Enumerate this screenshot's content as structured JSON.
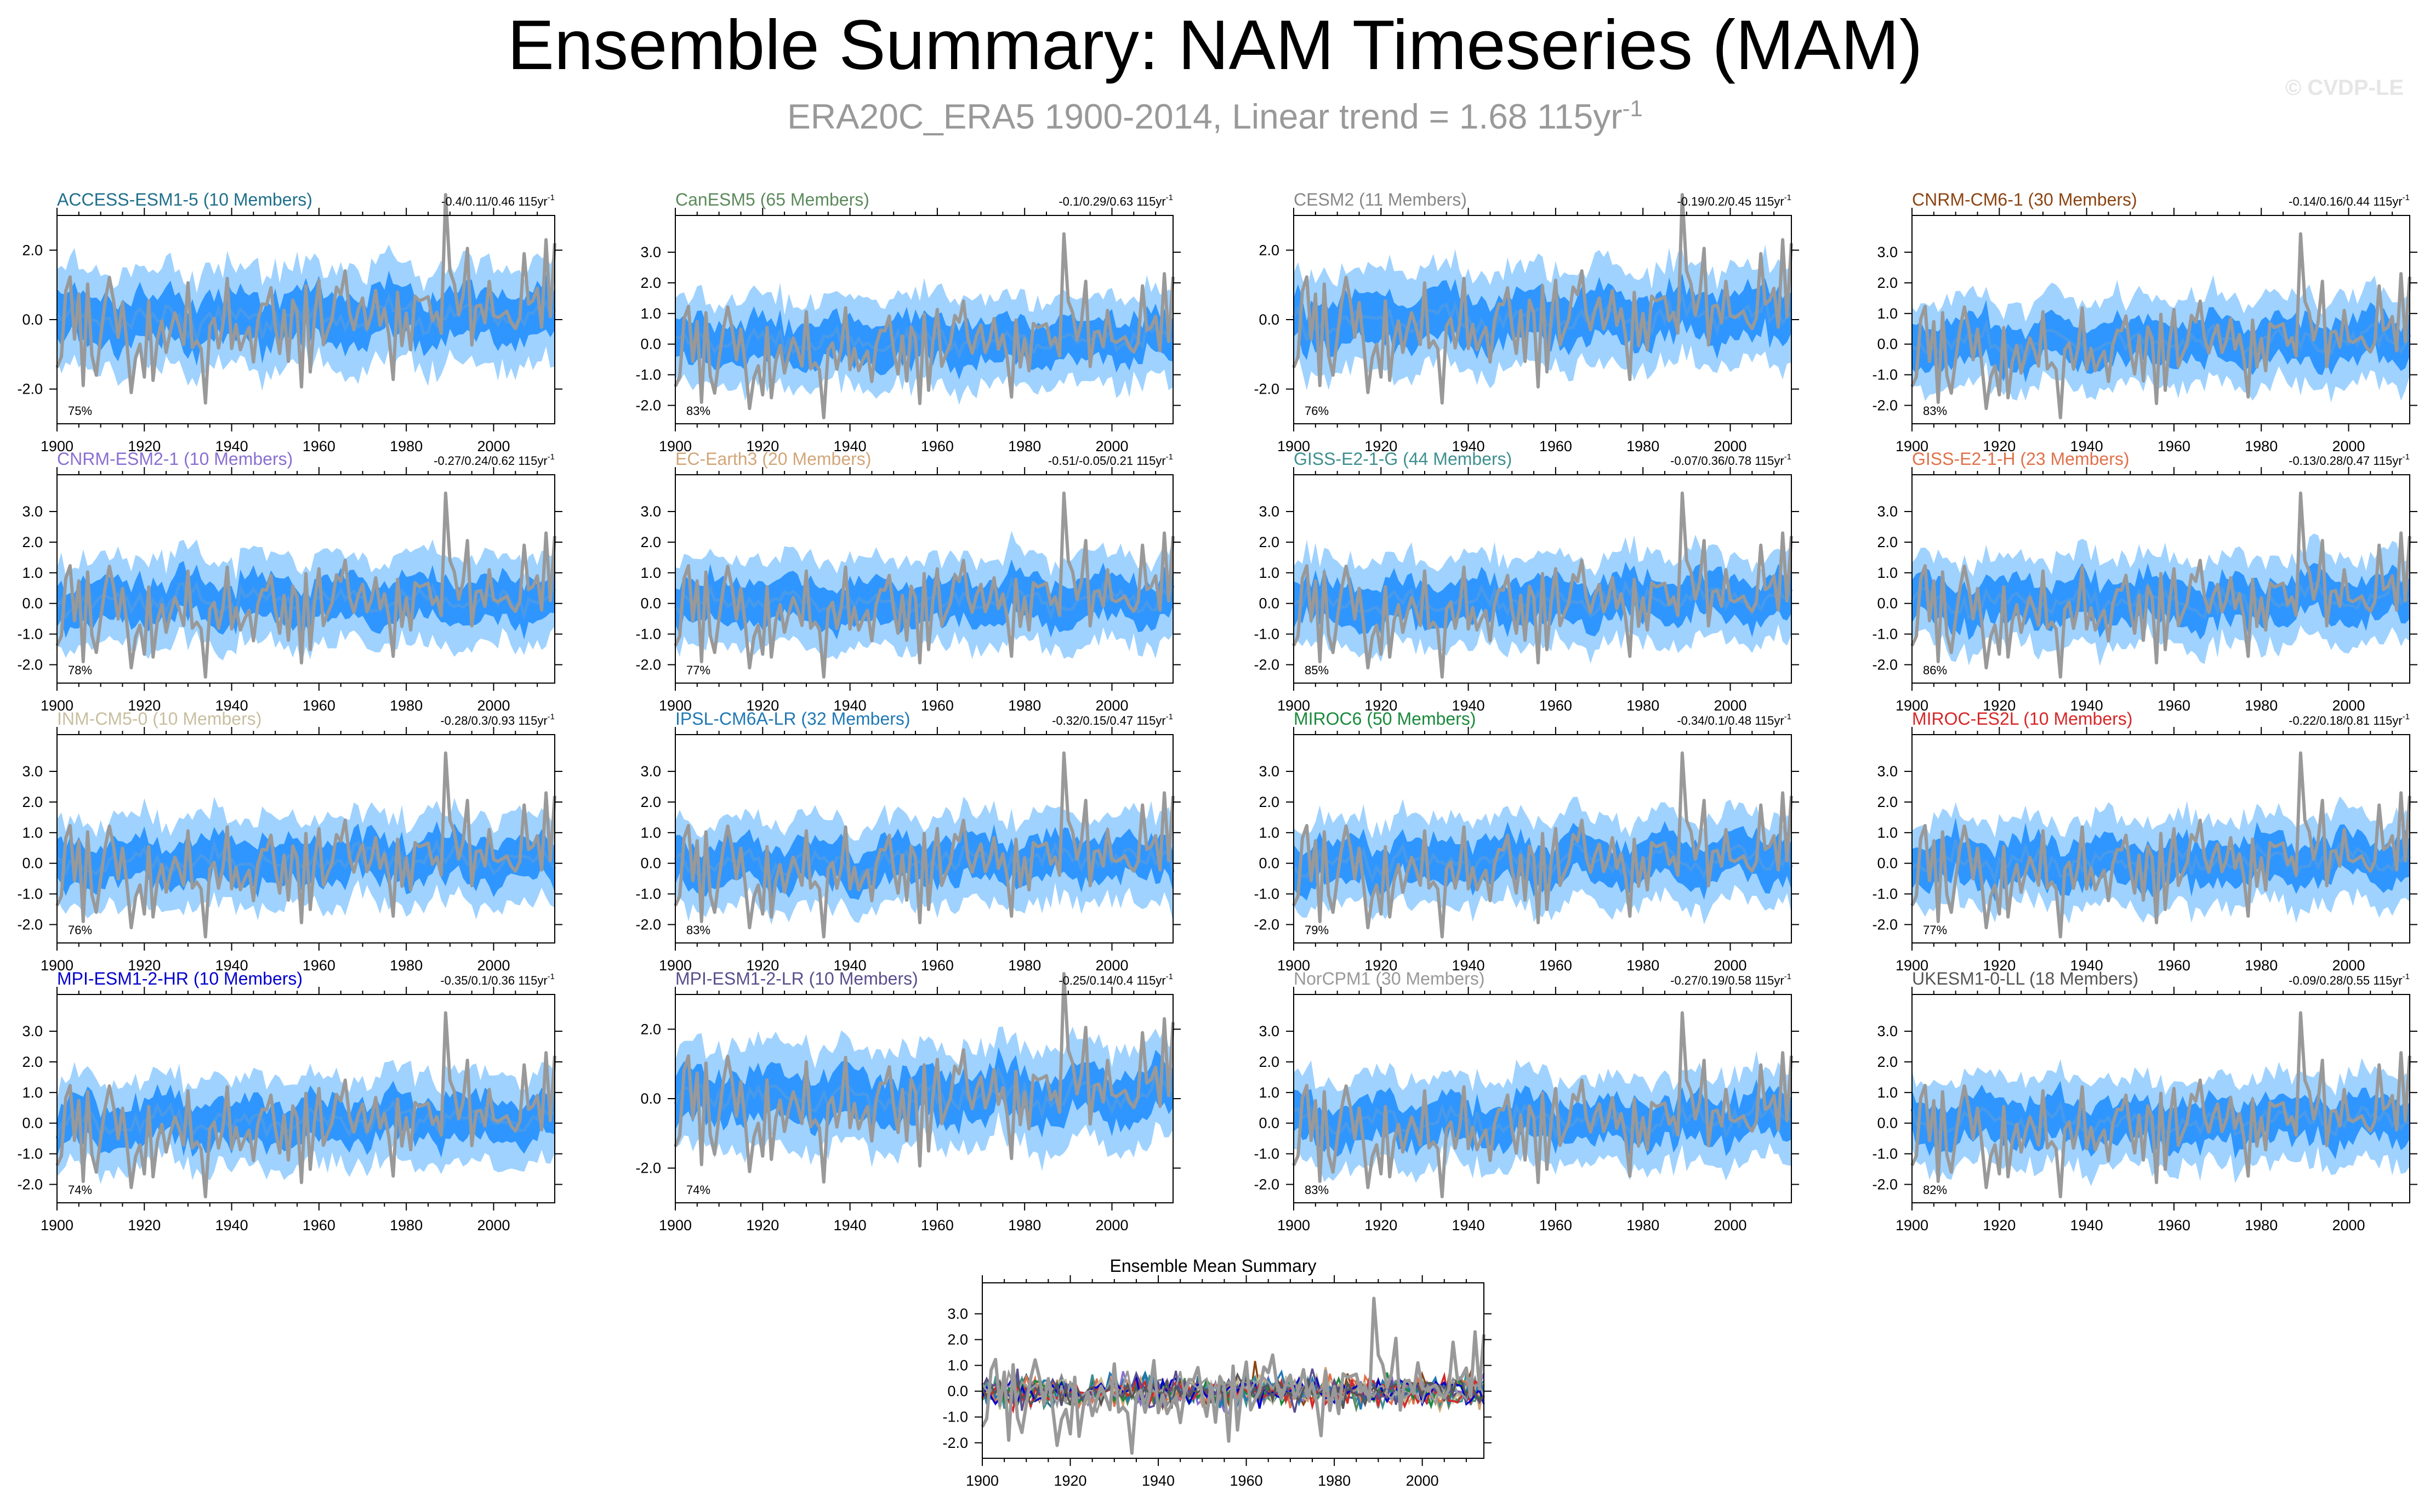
{
  "title": "Ensemble Summary: NAM Timeseries (MAM)",
  "subtitle": "ERA20C_ERA5 1900-2014, Linear trend = 1.68 115yr",
  "subtitle_sup": "-1",
  "watermark": "© CVDP-LE",
  "colors": {
    "outer_band": "#9fd2ff",
    "inner_band": "#2f96ff",
    "ensemble_mean": "#4a9ae8",
    "observations": "#999999"
  },
  "chart_data": {
    "type": "line",
    "x_range": [
      1900,
      2014
    ],
    "x_ticks": [
      "1900",
      "1920",
      "1940",
      "1960",
      "1980",
      "2000"
    ],
    "panels": [
      {
        "title": "ACCESS-ESM1-5 (10 Members)",
        "title_color": "#1f6f8b",
        "trend": "-0.4/0.11/0.46 115yr",
        "trend_sup": "-1",
        "percent": "75%",
        "y_ticks": [
          "2.0",
          "0.0",
          "-2.0"
        ],
        "ylim": [
          -3.0,
          3.0
        ]
      },
      {
        "title": "CanESM5 (65 Members)",
        "title_color": "#5c8a5c",
        "trend": "-0.1/0.29/0.63 115yr",
        "trend_sup": "-1",
        "percent": "83%",
        "y_ticks": [
          "3.0",
          "2.0",
          "1.0",
          "0.0",
          "-1.0",
          "-2.0"
        ],
        "ylim": [
          -2.6,
          4.2
        ]
      },
      {
        "title": "CESM2 (11 Members)",
        "title_color": "#888888",
        "trend": "-0.19/0.2/0.45 115yr",
        "trend_sup": "-1",
        "percent": "76%",
        "y_ticks": [
          "2.0",
          "0.0",
          "-2.0"
        ],
        "ylim": [
          -3.0,
          3.0
        ]
      },
      {
        "title": "CNRM-CM6-1 (30 Members)",
        "title_color": "#8b4513",
        "trend": "-0.14/0.16/0.44 115yr",
        "trend_sup": "-1",
        "percent": "83%",
        "y_ticks": [
          "3.0",
          "2.0",
          "1.0",
          "0.0",
          "-1.0",
          "-2.0"
        ],
        "ylim": [
          -2.6,
          4.2
        ]
      },
      {
        "title": "CNRM-ESM2-1 (10 Members)",
        "title_color": "#8a6fd1",
        "trend": "-0.27/0.24/0.62 115yr",
        "trend_sup": "-1",
        "percent": "78%",
        "y_ticks": [
          "3.0",
          "2.0",
          "1.0",
          "0.0",
          "-1.0",
          "-2.0"
        ],
        "ylim": [
          -2.6,
          4.2
        ]
      },
      {
        "title": "EC-Earth3 (20 Members)",
        "title_color": "#d2a679",
        "trend": "-0.51/-0.05/0.21 115yr",
        "trend_sup": "-1",
        "percent": "77%",
        "y_ticks": [
          "3.0",
          "2.0",
          "1.0",
          "0.0",
          "-1.0",
          "-2.0"
        ],
        "ylim": [
          -2.6,
          4.2
        ]
      },
      {
        "title": "GISS-E2-1-G (44 Members)",
        "title_color": "#3f8f8f",
        "trend": "-0.07/0.36/0.78 115yr",
        "trend_sup": "-1",
        "percent": "85%",
        "y_ticks": [
          "3.0",
          "2.0",
          "1.0",
          "0.0",
          "-1.0",
          "-2.0"
        ],
        "ylim": [
          -2.6,
          4.2
        ]
      },
      {
        "title": "GISS-E2-1-H (23 Members)",
        "title_color": "#e0714b",
        "trend": "-0.13/0.28/0.47 115yr",
        "trend_sup": "-1",
        "percent": "86%",
        "y_ticks": [
          "3.0",
          "2.0",
          "1.0",
          "0.0",
          "-1.0",
          "-2.0"
        ],
        "ylim": [
          -2.6,
          4.2
        ]
      },
      {
        "title": "INM-CM5-0 (10 Members)",
        "title_color": "#c8bfa0",
        "trend": "-0.28/0.3/0.93 115yr",
        "trend_sup": "-1",
        "percent": "76%",
        "y_ticks": [
          "3.0",
          "2.0",
          "1.0",
          "0.0",
          "-1.0",
          "-2.0"
        ],
        "ylim": [
          -2.6,
          4.2
        ]
      },
      {
        "title": "IPSL-CM6A-LR (32 Members)",
        "title_color": "#1f78b4",
        "trend": "-0.32/0.15/0.47 115yr",
        "trend_sup": "-1",
        "percent": "83%",
        "y_ticks": [
          "3.0",
          "2.0",
          "1.0",
          "0.0",
          "-1.0",
          "-2.0"
        ],
        "ylim": [
          -2.6,
          4.2
        ]
      },
      {
        "title": "MIROC6 (50 Members)",
        "title_color": "#1a8a3c",
        "trend": "-0.34/0.1/0.48 115yr",
        "trend_sup": "-1",
        "percent": "79%",
        "y_ticks": [
          "3.0",
          "2.0",
          "1.0",
          "0.0",
          "-1.0",
          "-2.0"
        ],
        "ylim": [
          -2.6,
          4.2
        ]
      },
      {
        "title": "MIROC-ES2L (10 Members)",
        "title_color": "#d62728",
        "trend": "-0.22/0.18/0.81 115yr",
        "trend_sup": "-1",
        "percent": "77%",
        "y_ticks": [
          "3.0",
          "2.0",
          "1.0",
          "0.0",
          "-1.0",
          "-2.0"
        ],
        "ylim": [
          -2.6,
          4.2
        ]
      },
      {
        "title": "MPI-ESM1-2-HR (10 Members)",
        "title_color": "#0000cc",
        "trend": "-0.35/0.1/0.36 115yr",
        "trend_sup": "-1",
        "percent": "74%",
        "y_ticks": [
          "3.0",
          "2.0",
          "1.0",
          "0.0",
          "-1.0",
          "-2.0"
        ],
        "ylim": [
          -2.6,
          4.2
        ]
      },
      {
        "title": "MPI-ESM1-2-LR (10 Members)",
        "title_color": "#5a4e8c",
        "trend": "-0.25/0.14/0.4 115yr",
        "trend_sup": "-1",
        "percent": "74%",
        "y_ticks": [
          "2.0",
          "0.0",
          "-2.0"
        ],
        "ylim": [
          -3.0,
          3.0
        ]
      },
      {
        "title": "NorCPM1 (30 Members)",
        "title_color": "#999999",
        "trend": "-0.27/0.19/0.58 115yr",
        "trend_sup": "-1",
        "percent": "83%",
        "y_ticks": [
          "3.0",
          "2.0",
          "1.0",
          "0.0",
          "-1.0",
          "-2.0"
        ],
        "ylim": [
          -2.6,
          4.2
        ]
      },
      {
        "title": "UKESM1-0-LL (18 Members)",
        "title_color": "#555555",
        "trend": "-0.09/0.28/0.55 115yr",
        "trend_sup": "-1",
        "percent": "82%",
        "y_ticks": [
          "3.0",
          "2.0",
          "1.0",
          "0.0",
          "-1.0",
          "-2.0"
        ],
        "ylim": [
          -2.6,
          4.2
        ]
      }
    ],
    "summary": {
      "title": "Ensemble Mean Summary",
      "y_ticks": [
        "3.0",
        "2.0",
        "1.0",
        "0.0",
        "-1.0",
        "-2.0"
      ],
      "ylim": [
        -2.6,
        4.2
      ],
      "series_colors": [
        "#1f6f8b",
        "#5c8a5c",
        "#888888",
        "#8b4513",
        "#8a6fd1",
        "#d2a679",
        "#3f8f8f",
        "#e0714b",
        "#c8bfa0",
        "#1f78b4",
        "#1a8a3c",
        "#d62728",
        "#0000cc",
        "#5a4e8c",
        "#999999",
        "#555555"
      ]
    }
  }
}
